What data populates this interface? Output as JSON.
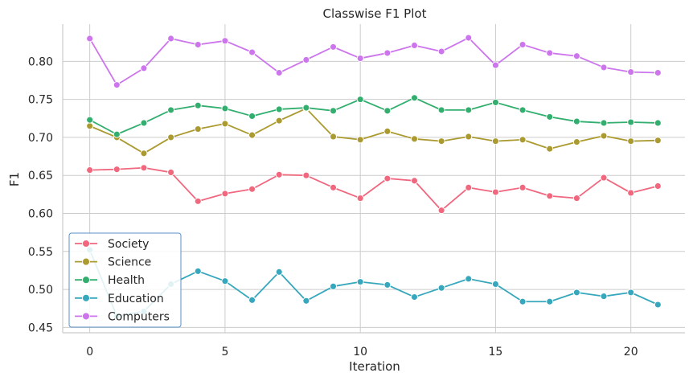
{
  "chart_data": {
    "type": "line",
    "title": "Classwise F1 Plot",
    "xlabel": "Iteration",
    "ylabel": "F1",
    "xlim": [
      -1.0,
      22.0
    ],
    "ylim": [
      0.443,
      0.849
    ],
    "xticks": [
      0,
      5,
      10,
      15,
      20
    ],
    "yticks": [
      0.45,
      0.5,
      0.55,
      0.6,
      0.65,
      0.7,
      0.75,
      0.8
    ],
    "ytick_labels": [
      "0.45",
      "0.50",
      "0.55",
      "0.60",
      "0.65",
      "0.70",
      "0.75",
      "0.80"
    ],
    "grid": true,
    "legend_position": "lower-left",
    "x": [
      0,
      1,
      2,
      3,
      4,
      5,
      6,
      7,
      8,
      9,
      10,
      11,
      12,
      13,
      14,
      15,
      16,
      17,
      18,
      19,
      20,
      21
    ],
    "series": [
      {
        "name": "Society",
        "color": "#f0677e",
        "values": [
          0.657,
          0.658,
          0.66,
          0.654,
          0.616,
          0.626,
          0.632,
          0.651,
          0.65,
          0.634,
          0.62,
          0.646,
          0.643,
          0.604,
          0.634,
          0.628,
          0.634,
          0.623,
          0.62,
          0.647,
          0.627,
          0.636
        ]
      },
      {
        "name": "Science",
        "color": "#ab9a2f",
        "values": [
          0.715,
          0.7,
          0.679,
          0.7,
          0.711,
          0.718,
          0.703,
          0.722,
          0.738,
          0.701,
          0.697,
          0.708,
          0.698,
          0.695,
          0.701,
          0.695,
          0.697,
          0.685,
          0.694,
          0.702,
          0.695,
          0.696
        ]
      },
      {
        "name": "Health",
        "color": "#32ae6e",
        "values": [
          0.723,
          0.704,
          0.719,
          0.736,
          0.742,
          0.738,
          0.728,
          0.737,
          0.739,
          0.735,
          0.75,
          0.735,
          0.752,
          0.736,
          0.736,
          0.746,
          0.736,
          0.727,
          0.721,
          0.719,
          0.72,
          0.719
        ]
      },
      {
        "name": "Education",
        "color": "#36a7bc",
        "values": [
          0.552,
          0.465,
          0.471,
          0.507,
          0.524,
          0.511,
          0.486,
          0.523,
          0.485,
          0.504,
          0.51,
          0.506,
          0.49,
          0.502,
          0.514,
          0.507,
          0.484,
          0.484,
          0.496,
          0.491,
          0.496,
          0.48
        ]
      },
      {
        "name": "Computers",
        "color": "#cc75ec",
        "values": [
          0.83,
          0.769,
          0.791,
          0.83,
          0.822,
          0.827,
          0.812,
          0.785,
          0.802,
          0.819,
          0.804,
          0.811,
          0.821,
          0.813,
          0.831,
          0.795,
          0.822,
          0.811,
          0.807,
          0.792,
          0.786,
          0.785
        ]
      }
    ]
  }
}
